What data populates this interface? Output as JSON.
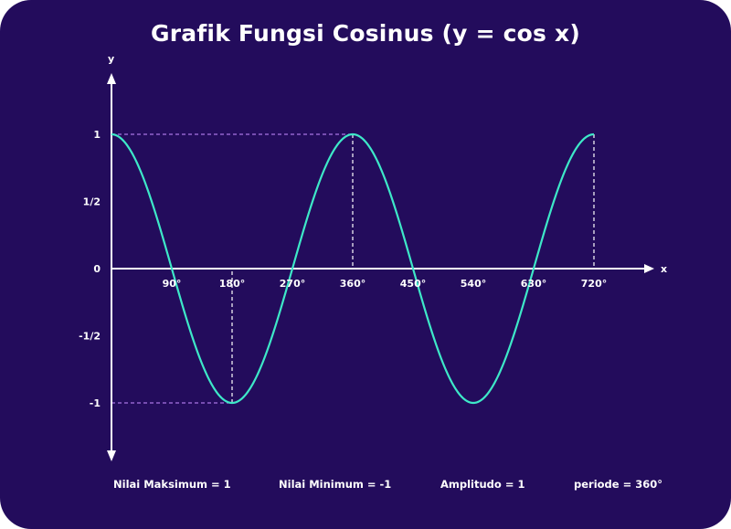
{
  "chart_data": {
    "type": "line",
    "title": "Grafik Fungsi Cosinus (y = cos x)",
    "xlabel": "x",
    "ylabel": "y",
    "function": "cos",
    "x": [
      0,
      90,
      180,
      270,
      360,
      450,
      540,
      630,
      720
    ],
    "y": [
      1,
      0,
      -1,
      0,
      1,
      0,
      -1,
      0,
      1
    ],
    "xlim": [
      0,
      720
    ],
    "ylim": [
      -1,
      1
    ],
    "x_ticks": [
      90,
      180,
      270,
      360,
      450,
      540,
      630,
      720
    ],
    "x_tick_labels": [
      "90°",
      "180°",
      "270°",
      "360°",
      "450°",
      "540°",
      "630°",
      "720°"
    ],
    "y_ticks": [
      1,
      0.5,
      0,
      -0.5,
      -1
    ],
    "y_tick_labels": [
      "1",
      "1/2",
      "0",
      "-1/2",
      "-1"
    ],
    "grid": false,
    "reference_lines": [
      {
        "kind": "max",
        "y": 1,
        "x_from": 0,
        "x_to": 360,
        "color": "#a774e3"
      },
      {
        "kind": "min",
        "y": -1,
        "x_from": 0,
        "x_to": 180,
        "color": "#a774e3"
      }
    ],
    "drop_lines": [
      {
        "x": 180,
        "y": -1
      },
      {
        "x": 360,
        "y": 1
      },
      {
        "x": 720,
        "y": 1
      }
    ],
    "footer": {
      "max": "Nilai Maksimum = 1",
      "min": "Nilai Minimum = -1",
      "amplitude": "Amplitudo = 1",
      "period": "periode = 360°"
    },
    "colors": {
      "background": "#230c5c",
      "curve": "#3ee8c8",
      "axis": "#ffffff",
      "reference": "#a774e3",
      "drop": "#ffffff"
    }
  }
}
